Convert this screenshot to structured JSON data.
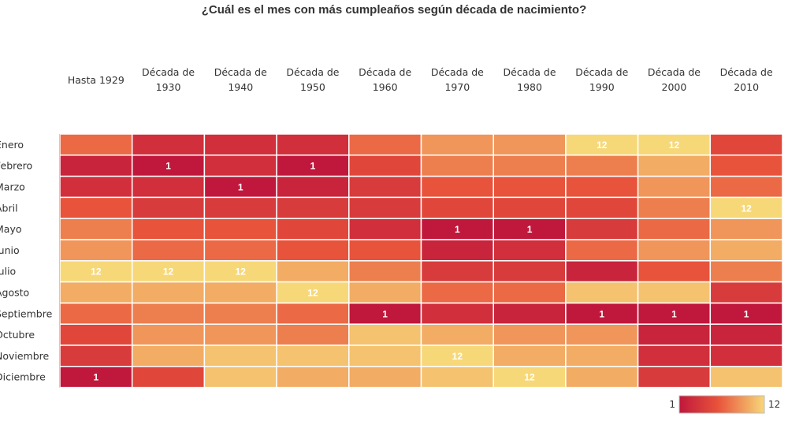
{
  "chart_data": {
    "type": "heatmap",
    "title": "¿Cuál es el mes con más cumpleaños según década de nacimiento?",
    "columns": [
      [
        "Hasta 1929"
      ],
      [
        "Década de",
        "1930"
      ],
      [
        "Década de",
        "1940"
      ],
      [
        "Década de",
        "1950"
      ],
      [
        "Década de",
        "1960"
      ],
      [
        "Década de",
        "1970"
      ],
      [
        "Década de",
        "1980"
      ],
      [
        "Década de",
        "1990"
      ],
      [
        "Década de",
        "2000"
      ],
      [
        "Década de",
        "2010"
      ]
    ],
    "rows": [
      "Enero",
      "Febrero",
      "Marzo",
      "Abril",
      "Mayo",
      "Junio",
      "Julio",
      "Agosto",
      "Septiembre",
      "Octubre",
      "Noviembre",
      "Diciembre"
    ],
    "values": [
      [
        7,
        3,
        3,
        3,
        7,
        9,
        9,
        12,
        12,
        5
      ],
      [
        2,
        1,
        3,
        1,
        5,
        8,
        8,
        8,
        10,
        6
      ],
      [
        3,
        3,
        1,
        2,
        4,
        6,
        6,
        6,
        9,
        7
      ],
      [
        6,
        4,
        4,
        4,
        4,
        5,
        5,
        5,
        8,
        12
      ],
      [
        8,
        6,
        6,
        5,
        3,
        1,
        1,
        4,
        7,
        9
      ],
      [
        9,
        7,
        7,
        6,
        6,
        2,
        3,
        7,
        9,
        10
      ],
      [
        12,
        12,
        12,
        10,
        8,
        4,
        4,
        2,
        6,
        8
      ],
      [
        10,
        10,
        10,
        12,
        10,
        7,
        7,
        11,
        11,
        4
      ],
      [
        7,
        8,
        8,
        7,
        1,
        3,
        2,
        1,
        1,
        1
      ],
      [
        5,
        9,
        9,
        8,
        11,
        10,
        9,
        9,
        2,
        2
      ],
      [
        4,
        10,
        11,
        11,
        11,
        12,
        10,
        10,
        3,
        3
      ],
      [
        1,
        5,
        11,
        10,
        10,
        11,
        12,
        10,
        4,
        11
      ]
    ],
    "labeled_values": [
      1,
      12
    ],
    "scale": {
      "min": 1,
      "max": 12,
      "min_color": "#c0183c",
      "mid_color": "#e8523a",
      "max_color": "#f7d879"
    },
    "legend": {
      "position": "bottom-right",
      "min_label": "1",
      "max_label": "12"
    }
  }
}
